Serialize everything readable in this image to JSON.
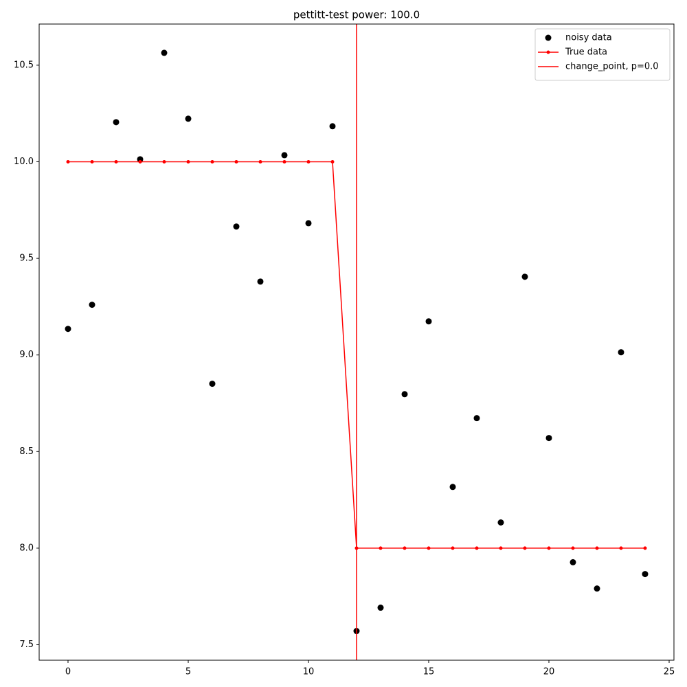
{
  "chart_data": {
    "type": "scatter",
    "title": "pettitt-test power: 100.0",
    "x": [
      0,
      1,
      2,
      3,
      4,
      5,
      6,
      7,
      8,
      9,
      10,
      11,
      12,
      13,
      14,
      15,
      16,
      17,
      18,
      19,
      20,
      21,
      22,
      23,
      24
    ],
    "series": [
      {
        "name": "noisy data",
        "style": "scatter",
        "color": "#000000",
        "values": [
          9.135,
          9.26,
          10.205,
          10.013,
          10.564,
          10.223,
          8.851,
          9.665,
          9.38,
          10.034,
          9.682,
          10.184,
          7.571,
          7.692,
          8.797,
          9.174,
          8.317,
          8.673,
          8.133,
          9.405,
          8.57,
          7.927,
          7.791,
          9.014,
          7.866
        ]
      },
      {
        "name": "True data",
        "style": "line",
        "color": "#ff0000",
        "values": [
          10,
          10,
          10,
          10,
          10,
          10,
          10,
          10,
          10,
          10,
          10,
          10,
          8,
          8,
          8,
          8,
          8,
          8,
          8,
          8,
          8,
          8,
          8,
          8,
          8
        ]
      }
    ],
    "vlines": [
      {
        "name": "change_point, p=0.0",
        "x": 12,
        "color": "#ff0000"
      }
    ],
    "xlim": [
      -1.2,
      25.2
    ],
    "ylim": [
      7.42,
      10.713
    ],
    "xticks": [
      0,
      5,
      10,
      15,
      20,
      25
    ],
    "yticks": [
      7.5,
      {
        "value": 8,
        "label": "8.0"
      },
      8.5,
      {
        "value": 9,
        "label": "9.0"
      },
      9.5,
      {
        "value": 10,
        "label": "10.0"
      },
      10.5
    ],
    "legend": "upper right"
  }
}
